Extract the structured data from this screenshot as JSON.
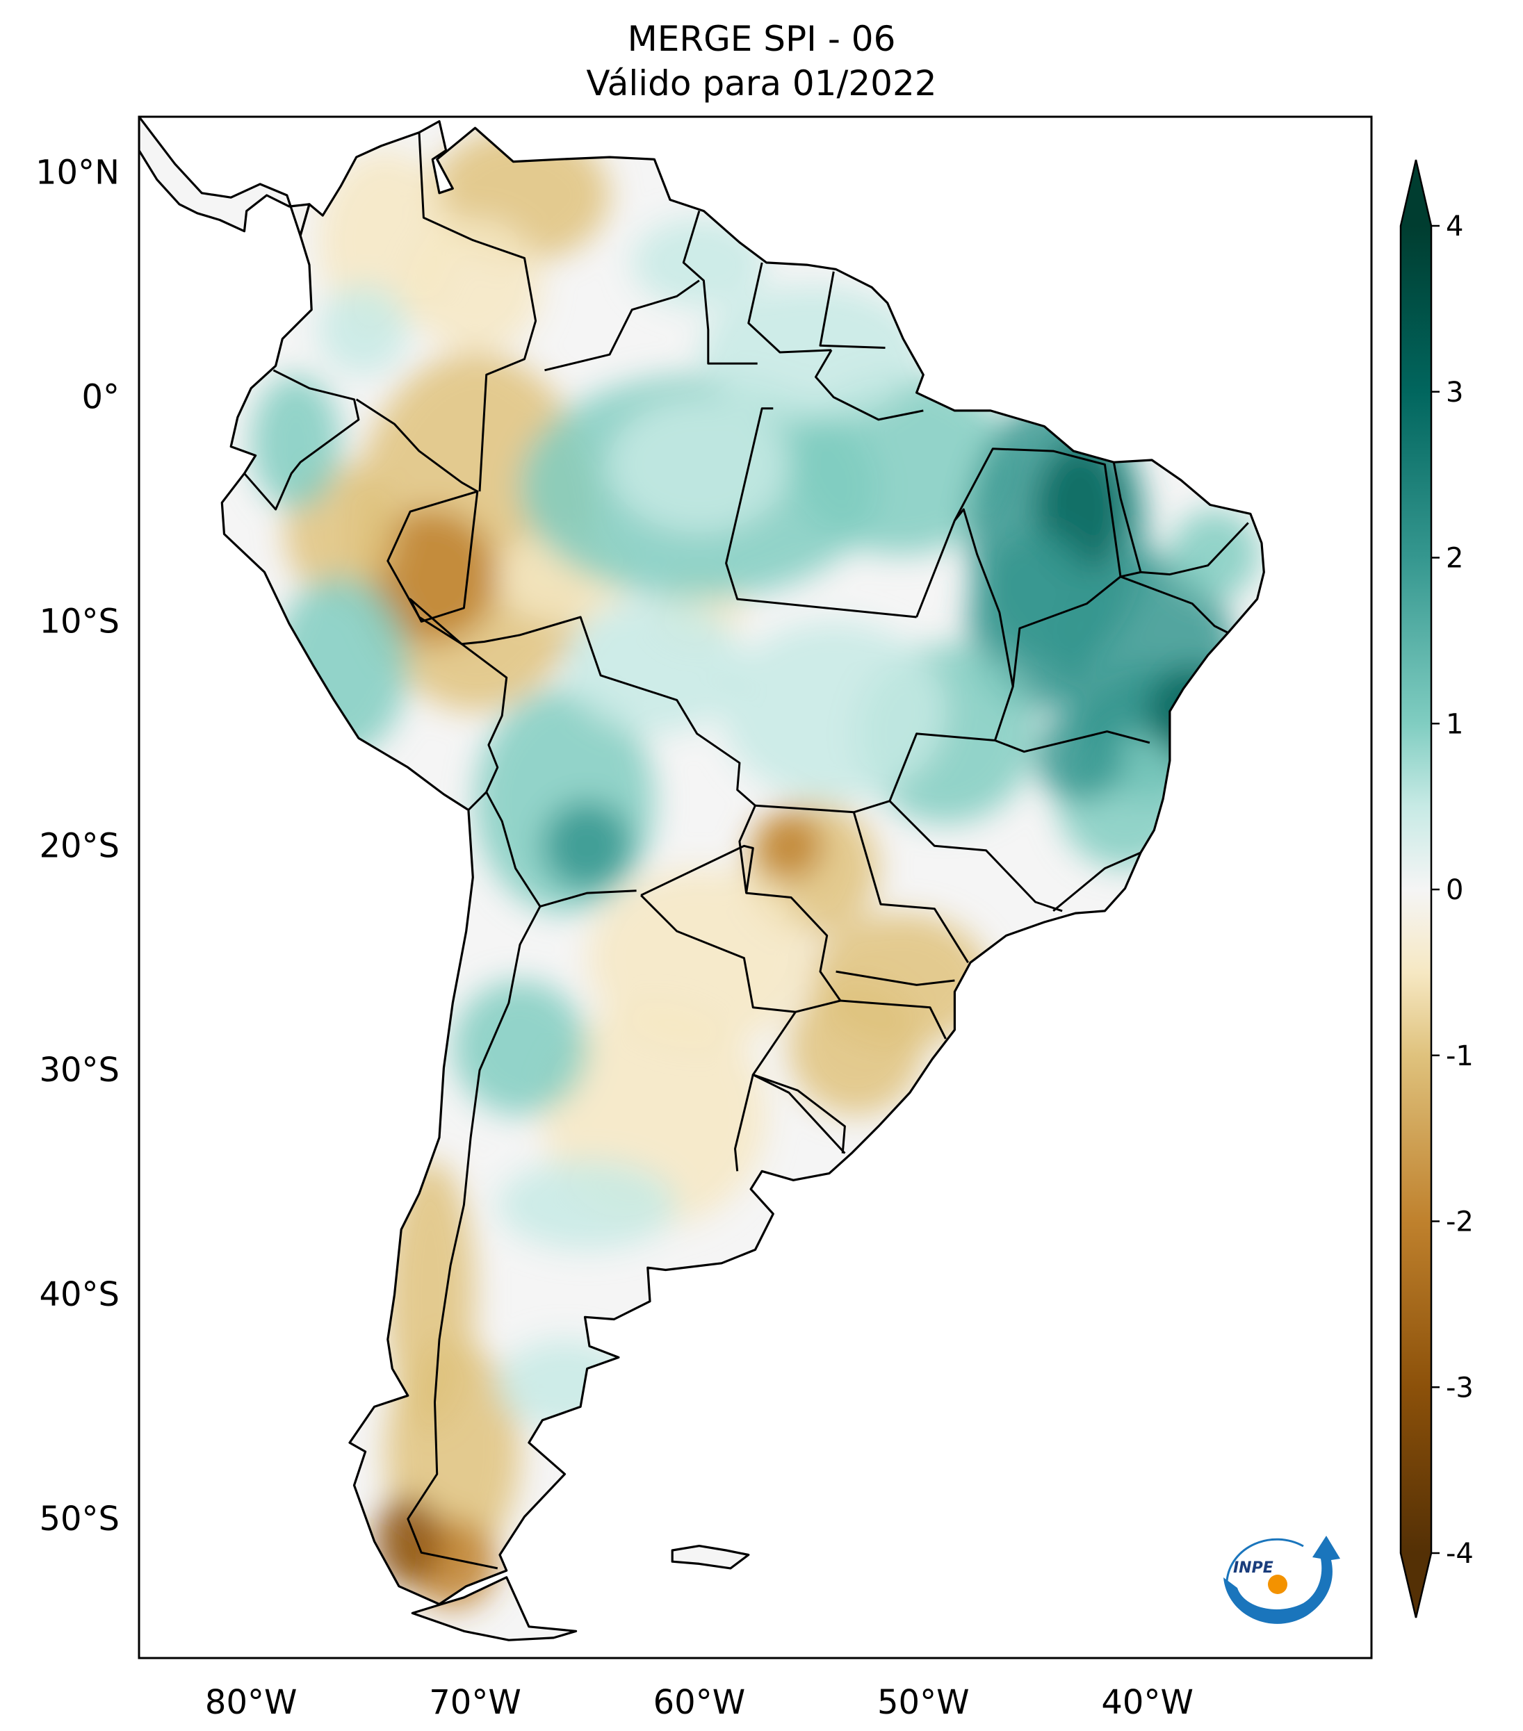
{
  "title": {
    "line1": "MERGE   SPI - 06",
    "line2": "Válido para 01/2022"
  },
  "axes": {
    "lat_labels": [
      "10°N",
      "0°",
      "10°S",
      "20°S",
      "30°S",
      "40°S",
      "50°S"
    ],
    "lat_values": [
      10,
      0,
      -10,
      -20,
      -30,
      -40,
      -50
    ],
    "lon_labels": [
      "80°W",
      "70°W",
      "60°W",
      "50°W",
      "40°W"
    ],
    "lon_values": [
      -80,
      -70,
      -60,
      -50,
      -40
    ],
    "lat_range": [
      -56.2,
      12.5
    ],
    "lon_range": [
      -85,
      -30
    ]
  },
  "colorbar": {
    "ticks": [
      "4",
      "3",
      "2",
      "1",
      "0",
      "-1",
      "-2",
      "-3",
      "-4"
    ],
    "tick_values": [
      4,
      3,
      2,
      1,
      0,
      -1,
      -2,
      -3,
      -4
    ],
    "range": [
      -4,
      4
    ],
    "colors": {
      "plus4": "#003d30",
      "plus3": "#01665e",
      "plus2": "#35978f",
      "plus1": "#80cdc1",
      "plus05": "#c7eae5",
      "zero": "#f5f5f5",
      "minus05": "#f6e8c3",
      "minus1": "#dfc27d",
      "minus2": "#bf812d",
      "minus3": "#8c510a",
      "minus4": "#543005"
    }
  },
  "logo": {
    "text": "INPE",
    "arc_color": "#1a75bc",
    "dot_color": "#f39200"
  }
}
